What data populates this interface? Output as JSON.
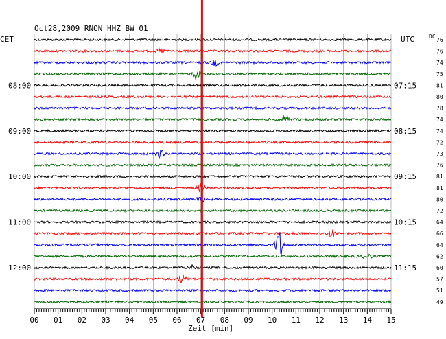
{
  "chart_data": {
    "type": "line",
    "title": "Oct28,2009   RNON HHZ BW 01",
    "left_label": "CET",
    "right_label": "UTC",
    "dc_label": "DC",
    "xlabel": "Zeit [min]",
    "xlim": [
      0,
      15
    ],
    "x_ticks": [
      "00",
      "01",
      "02",
      "03",
      "04",
      "05",
      "06",
      "07",
      "08",
      "09",
      "10",
      "11",
      "12",
      "13",
      "14",
      "15"
    ],
    "trace_colors": [
      "#000000",
      "#ff0000",
      "#0000ff",
      "#006600"
    ],
    "marker_color": "#ff0000",
    "marker_minute": 7.05,
    "left_time_labels": [
      {
        "row": 4,
        "text": "08:00"
      },
      {
        "row": 8,
        "text": "09:00"
      },
      {
        "row": 12,
        "text": "10:00"
      },
      {
        "row": 16,
        "text": "11:00"
      },
      {
        "row": 20,
        "text": "12:00"
      }
    ],
    "right_time_labels": [
      {
        "row": 4,
        "text": "07:15"
      },
      {
        "row": 8,
        "text": "08:15"
      },
      {
        "row": 12,
        "text": "09:15"
      },
      {
        "row": 16,
        "text": "10:15"
      },
      {
        "row": 20,
        "text": "11:15"
      }
    ],
    "dc_values": [
      "76",
      "76",
      "74",
      "75",
      "81",
      "80",
      "78",
      "74",
      "74",
      "72",
      "73",
      "76",
      "81",
      "81",
      "80",
      "72",
      "64",
      "66",
      "64",
      "62",
      "60",
      "57",
      "51",
      "49"
    ],
    "events": [
      {
        "row": 1,
        "minute": 5.3,
        "amp": 3
      },
      {
        "row": 2,
        "minute": 7.6,
        "amp": 4
      },
      {
        "row": 3,
        "minute": 6.8,
        "amp": 6
      },
      {
        "row": 7,
        "minute": 10.5,
        "amp": 6
      },
      {
        "row": 10,
        "minute": 5.3,
        "amp": 6
      },
      {
        "row": 13,
        "minute": 7.0,
        "amp": 7
      },
      {
        "row": 14,
        "minute": 7.0,
        "amp": 5
      },
      {
        "row": 17,
        "minute": 12.5,
        "amp": 6
      },
      {
        "row": 18,
        "minute": 10.3,
        "amp": 22
      },
      {
        "row": 19,
        "minute": 14.0,
        "amp": 4
      },
      {
        "row": 20,
        "minute": 6.6,
        "amp": 4
      },
      {
        "row": 21,
        "minute": 6.2,
        "amp": 6
      }
    ]
  }
}
